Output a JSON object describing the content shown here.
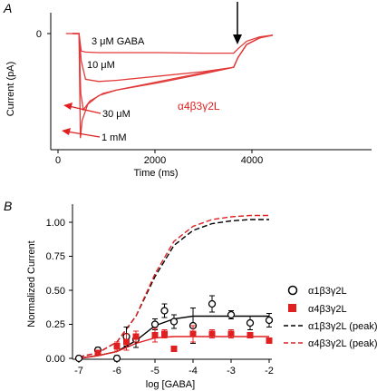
{
  "colors": {
    "axis": "#000000",
    "red": "#e02020",
    "trace": "#e23a3a",
    "open": "#000000"
  },
  "chart_data": [
    {
      "panel_label": "A",
      "type": "line",
      "xlabel": "Time (ms)",
      "ylabel": "Current (pA)",
      "xlim": [
        -500,
        4600
      ],
      "x_ticks": [
        "0",
        "2000",
        "4000"
      ],
      "x_tick_values": [
        0,
        2000,
        4000
      ],
      "y_ticks": [
        "0"
      ],
      "y_tick_values": [
        0
      ],
      "ylim": [
        -1.0,
        0.07
      ],
      "annotations": [
        "3 μM GABA",
        "10 μM",
        "30 μM",
        "1 mM"
      ],
      "subunit_label": "α4β3γ2L",
      "arrow_at_ms": 3700,
      "series": [
        {
          "concentration": "3 μM",
          "x": [
            0,
            150,
            200,
            300,
            600,
            1000,
            2000,
            3000,
            3700,
            3800,
            4000,
            4300,
            4600
          ],
          "y": [
            0,
            0,
            -0.16,
            -0.17,
            -0.175,
            -0.175,
            -0.175,
            -0.18,
            -0.18,
            -0.14,
            -0.07,
            -0.03,
            -0.015
          ]
        },
        {
          "concentration": "10 μM",
          "x": [
            0,
            150,
            200,
            300,
            600,
            1000,
            2000,
            3000,
            3700,
            3800,
            4000,
            4300,
            4600
          ],
          "y": [
            0,
            0,
            -0.25,
            -0.42,
            -0.44,
            -0.43,
            -0.39,
            -0.35,
            -0.31,
            -0.22,
            -0.1,
            -0.04,
            -0.015
          ]
        },
        {
          "concentration": "30 μM",
          "x": [
            0,
            150,
            190,
            250,
            400,
            700,
            1000,
            2000,
            3000,
            3700,
            3800,
            4000,
            4300,
            4600
          ],
          "y": [
            0,
            0,
            -0.55,
            -0.7,
            -0.62,
            -0.55,
            -0.52,
            -0.45,
            -0.37,
            -0.31,
            -0.22,
            -0.1,
            -0.04,
            -0.015
          ]
        },
        {
          "concentration": "1 mM",
          "x": [
            0,
            150,
            180,
            220,
            350,
            600,
            1000,
            2000,
            3000,
            3700,
            3800,
            4000,
            4300,
            4600
          ],
          "y": [
            0,
            0,
            -0.96,
            -0.8,
            -0.65,
            -0.57,
            -0.52,
            -0.44,
            -0.36,
            -0.31,
            -0.22,
            -0.1,
            -0.04,
            -0.015
          ]
        }
      ]
    },
    {
      "panel_label": "B",
      "type": "scatter",
      "xlabel": "log [GABA]",
      "ylabel": "Normalized Current",
      "xlim": [
        -7,
        -2
      ],
      "ylim": [
        0,
        1.08
      ],
      "x_ticks": [
        "-7",
        "-6",
        "-5",
        "-4",
        "-3",
        "-2"
      ],
      "x_tick_values": [
        -7,
        -6,
        -5,
        -4,
        -3,
        -2
      ],
      "y_ticks": [
        "0.00",
        "0.25",
        "0.50",
        "0.75",
        "1.00"
      ],
      "y_tick_values": [
        0,
        0.25,
        0.5,
        0.75,
        1.0
      ],
      "legend_placement": "right",
      "series": [
        {
          "name": "α1β3γ2L",
          "marker": "open-circle",
          "x": [
            -7,
            -6.5,
            -6,
            -5.75,
            -5.5,
            -5.0,
            -4.75,
            -4.5,
            -4.0,
            -3.5,
            -3.0,
            -2.5,
            -2.0
          ],
          "y": [
            0.0,
            0.06,
            0.0,
            0.16,
            0.14,
            0.25,
            0.35,
            0.27,
            0.24,
            0.4,
            0.32,
            0.26,
            0.28
          ],
          "err": [
            0,
            0.02,
            0.02,
            0.07,
            0.06,
            0.04,
            0.05,
            0.05,
            0.13,
            0.06,
            0.03,
            0.05,
            0.05
          ]
        },
        {
          "name": "α4β3γ2L",
          "marker": "filled-square",
          "x": [
            -6.5,
            -6.0,
            -5.75,
            -5.5,
            -5.0,
            -4.75,
            -4.5,
            -4.0,
            -3.5,
            -3.0,
            -2.5,
            -2.0
          ],
          "y": [
            0.04,
            0.09,
            0.12,
            0.16,
            0.17,
            0.18,
            0.07,
            0.18,
            0.18,
            0.18,
            0.17,
            0.13
          ],
          "err": [
            0.02,
            0.03,
            0.06,
            0.04,
            0.05,
            0.03,
            0.02,
            0.06,
            0.03,
            0.03,
            0.02,
            0.02
          ]
        },
        {
          "name": "α1β3γ2L (peak)",
          "style": "dashed-black",
          "x": [
            -7,
            -6.5,
            -6,
            -5.5,
            -5.0,
            -4.5,
            -4.0,
            -3.5,
            -3.0,
            -2.5,
            -2.0
          ],
          "y": [
            0.01,
            0.04,
            0.12,
            0.31,
            0.6,
            0.83,
            0.94,
            0.99,
            1.01,
            1.02,
            1.02
          ]
        },
        {
          "name": "α4β3γ2L (peak)",
          "style": "dashed-red",
          "x": [
            -7,
            -6.5,
            -6,
            -5.5,
            -5.0,
            -4.5,
            -4.0,
            -3.5,
            -3.0,
            -2.5,
            -2.0
          ],
          "y": [
            0.01,
            0.04,
            0.12,
            0.31,
            0.62,
            0.86,
            0.97,
            1.02,
            1.04,
            1.05,
            1.05
          ]
        },
        {
          "fit_for": "α1β3γ2L",
          "style": "solid-black",
          "x": [
            -7,
            -6.5,
            -6,
            -5.5,
            -5.0,
            -4.5,
            -4.0,
            -3.5,
            -3.0,
            -2.5,
            -2.0
          ],
          "y": [
            0.0,
            0.02,
            0.05,
            0.13,
            0.24,
            0.29,
            0.31,
            0.31,
            0.31,
            0.31,
            0.31
          ]
        },
        {
          "fit_for": "α4β3γ2L",
          "style": "solid-red",
          "x": [
            -7,
            -6.5,
            -6,
            -5.5,
            -5.0,
            -4.5,
            -4.0,
            -3.5,
            -3.0,
            -2.5,
            -2.0
          ],
          "y": [
            0.0,
            0.02,
            0.05,
            0.11,
            0.15,
            0.16,
            0.16,
            0.16,
            0.16,
            0.16,
            0.16
          ]
        }
      ]
    }
  ]
}
